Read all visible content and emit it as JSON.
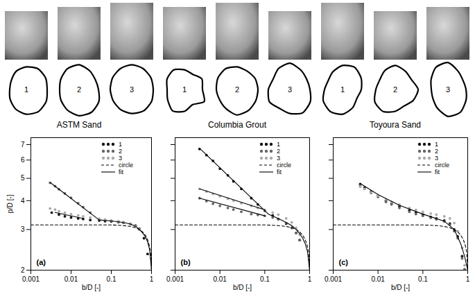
{
  "chart_data": [
    {
      "type": "line",
      "title": "ASTM Sand",
      "xlabel": "b/D [-]",
      "ylabel": "p/D [-]",
      "annotations": [
        "(a)"
      ],
      "log": true,
      "grid": false,
      "legend": "top-right",
      "xlim": [
        0.001,
        1
      ],
      "xticks": [
        0.001,
        0.01,
        0.1,
        1
      ],
      "ylim": [
        2,
        7.5
      ],
      "yticks": [
        2,
        3,
        4,
        5,
        6,
        7
      ],
      "series": [
        {
          "name": "1",
          "type": "scatter",
          "marker": "circle",
          "color": "#111111",
          "x": [
            0.0033,
            0.005,
            0.007,
            0.01,
            0.015,
            0.02,
            0.03,
            0.05,
            0.07,
            0.1,
            0.15,
            0.2,
            0.3,
            0.4,
            0.5,
            0.65,
            0.8
          ],
          "values": [
            3.55,
            3.48,
            3.42,
            3.38,
            3.35,
            3.33,
            3.3,
            3.28,
            3.26,
            3.25,
            3.23,
            3.21,
            3.17,
            3.12,
            3.02,
            2.75,
            2.35
          ]
        },
        {
          "name": "2",
          "type": "scatter",
          "marker": "circle",
          "color": "#666666",
          "x": [
            0.003,
            0.004,
            0.005,
            0.007,
            0.01,
            0.015,
            0.02,
            0.03,
            0.05,
            0.07,
            0.1,
            0.15,
            0.2,
            0.3,
            0.4,
            0.5
          ],
          "values": [
            4.78,
            4.62,
            4.48,
            4.3,
            4.12,
            3.9,
            3.75,
            3.55,
            3.32,
            3.3,
            3.27,
            3.24,
            3.22,
            3.17,
            3.1,
            3.0
          ]
        },
        {
          "name": "3",
          "type": "scatter",
          "marker": "circle",
          "color": "#aaaaaa",
          "x": [
            0.003,
            0.004,
            0.005,
            0.007,
            0.01,
            0.015,
            0.02,
            0.03,
            0.05,
            0.07,
            0.1,
            0.15,
            0.2,
            0.3,
            0.4,
            0.5
          ],
          "values": [
            3.7,
            3.66,
            3.6,
            3.55,
            3.5,
            3.45,
            3.42,
            3.38,
            3.34,
            3.31,
            3.29,
            3.26,
            3.23,
            3.18,
            3.1,
            3.0
          ]
        },
        {
          "name": "circle",
          "type": "line",
          "line_style": "dashed",
          "color": "#000000",
          "x": [
            0.001,
            0.01,
            0.1,
            0.2,
            0.3,
            0.4,
            0.5,
            0.6,
            0.7,
            0.8,
            0.9,
            0.95,
            1
          ],
          "values": [
            3.1416,
            3.1416,
            3.1416,
            3.12,
            3.093,
            3.054,
            3.0,
            2.929,
            2.836,
            2.71,
            2.525,
            2.381,
            2.0
          ]
        },
        {
          "name": "fit",
          "type": "line",
          "line_style": "solid",
          "color": "#000000",
          "x": [
            0.003,
            0.05,
            0.1,
            0.2,
            0.3,
            0.4,
            0.5,
            0.6,
            0.7,
            0.8,
            0.9,
            1,
            0.004,
            0.004,
            0.02
          ],
          "values": [
            4.8,
            3.3,
            3.27,
            3.22,
            3.17,
            3.1,
            3.0,
            2.9,
            2.8,
            2.65,
            2.45,
            2.0,
            null,
            3.56,
            3.35
          ]
        }
      ]
    },
    {
      "type": "line",
      "title": "Columbia Grout",
      "xlabel": "b/D [-]",
      "annotations": [
        "(b)"
      ],
      "log": true,
      "grid": false,
      "legend": "top-right",
      "tick_labels": "x",
      "xlim": [
        0.001,
        1
      ],
      "xticks": [
        0.001,
        0.01,
        0.1,
        1
      ],
      "ylim": [
        2,
        7.5
      ],
      "yticks": [
        2,
        3,
        4,
        5,
        6,
        7
      ],
      "series": [
        {
          "name": "1",
          "type": "scatter",
          "marker": "circle",
          "color": "#111111",
          "x": [
            0.0035,
            0.005,
            0.007,
            0.01,
            0.015,
            0.02,
            0.03,
            0.05,
            0.07,
            0.1,
            0.15,
            0.2,
            0.3,
            0.4,
            0.5,
            0.6
          ],
          "values": [
            6.7,
            6.3,
            5.95,
            5.5,
            5.15,
            4.85,
            4.5,
            4.1,
            3.85,
            3.62,
            3.45,
            3.33,
            3.18,
            3.05,
            2.9,
            2.7
          ]
        },
        {
          "name": "2",
          "type": "scatter",
          "marker": "circle",
          "color": "#666666",
          "x": [
            0.0035,
            0.005,
            0.007,
            0.01,
            0.015,
            0.02,
            0.03,
            0.05,
            0.07,
            0.1,
            0.15,
            0.2,
            0.3,
            0.4,
            0.5,
            0.6
          ],
          "values": [
            4.1,
            3.98,
            3.88,
            3.8,
            3.72,
            3.66,
            3.58,
            3.5,
            3.47,
            3.44,
            3.38,
            3.32,
            3.2,
            3.05,
            2.9,
            2.7
          ]
        },
        {
          "name": "3",
          "type": "scatter",
          "marker": "circle",
          "color": "#aaaaaa",
          "x": [
            0.0035,
            0.005,
            0.007,
            0.01,
            0.015,
            0.02,
            0.03,
            0.05,
            0.07,
            0.1,
            0.15,
            0.2,
            0.3,
            0.4,
            0.5,
            0.6
          ],
          "values": [
            4.5,
            4.38,
            4.28,
            4.18,
            4.08,
            4.0,
            3.9,
            3.8,
            3.72,
            3.65,
            3.55,
            3.48,
            3.35,
            3.22,
            3.05,
            2.85
          ]
        },
        {
          "name": "circle",
          "type": "line",
          "line_style": "dashed",
          "color": "#000000",
          "x": [
            0.001,
            0.01,
            0.1,
            0.2,
            0.3,
            0.4,
            0.5,
            0.6,
            0.7,
            0.8,
            0.9,
            0.95,
            1
          ],
          "values": [
            3.1416,
            3.1416,
            3.1416,
            3.12,
            3.093,
            3.054,
            3.0,
            2.929,
            2.836,
            2.71,
            2.525,
            2.381,
            2.0
          ]
        },
        {
          "name": "fit",
          "type": "line",
          "line_style": "solid",
          "color": "#000000",
          "x": [
            0.0035,
            0.12,
            0.2,
            0.3,
            0.4,
            0.5,
            0.6,
            0.7,
            0.8,
            0.9,
            1,
            0.0035,
            0.0035,
            0.1,
            0.0035,
            0.0035,
            0.1
          ],
          "values": [
            6.75,
            3.5,
            3.35,
            3.22,
            3.12,
            3.0,
            2.88,
            2.75,
            2.6,
            2.4,
            2.0,
            null,
            4.1,
            3.44,
            null,
            4.5,
            3.65
          ]
        }
      ]
    },
    {
      "type": "line",
      "title": "Toyoura Sand",
      "xlabel": "b/D [-]",
      "annotations": [
        "(c)"
      ],
      "log": true,
      "grid": false,
      "legend": "top-right",
      "tick_labels": "x",
      "xlim": [
        0.001,
        1
      ],
      "xticks": [
        0.001,
        0.01,
        0.1,
        1
      ],
      "ylim": [
        2,
        7.5
      ],
      "yticks": [
        2,
        3,
        4,
        5,
        6,
        7
      ],
      "series": [
        {
          "name": "1",
          "type": "scatter",
          "marker": "circle",
          "color": "#111111",
          "x": [
            0.004,
            0.005,
            0.007,
            0.01,
            0.015,
            0.02,
            0.03,
            0.05,
            0.07,
            0.1,
            0.15,
            0.2,
            0.3,
            0.4,
            0.5,
            0.6,
            0.75,
            0.85
          ],
          "values": [
            4.72,
            4.55,
            4.38,
            4.2,
            4.0,
            3.9,
            3.78,
            3.63,
            3.55,
            3.48,
            3.4,
            3.35,
            3.28,
            3.18,
            3.0,
            2.8,
            2.3,
            2.0
          ]
        },
        {
          "name": "2",
          "type": "scatter",
          "marker": "circle",
          "color": "#666666",
          "x": [
            0.004,
            0.005,
            0.007,
            0.01,
            0.015,
            0.02,
            0.03,
            0.05,
            0.07,
            0.1,
            0.15,
            0.2,
            0.3,
            0.4,
            0.5,
            0.6,
            0.75,
            0.85
          ],
          "values": [
            4.65,
            4.5,
            4.32,
            4.15,
            3.95,
            3.85,
            3.72,
            3.58,
            3.5,
            3.44,
            3.37,
            3.32,
            3.25,
            3.15,
            2.95,
            2.75,
            2.25,
            2.02
          ]
        },
        {
          "name": "3",
          "type": "scatter",
          "marker": "circle",
          "color": "#aaaaaa",
          "x": [
            0.004,
            0.005,
            0.007,
            0.01,
            0.015,
            0.02,
            0.03,
            0.05,
            0.07,
            0.1,
            0.15,
            0.2,
            0.3,
            0.4,
            0.5,
            0.6,
            0.75,
            0.85
          ],
          "values": [
            4.6,
            4.5,
            4.35,
            4.2,
            4.05,
            3.95,
            3.85,
            3.72,
            3.65,
            3.58,
            3.52,
            3.48,
            3.42,
            3.35,
            3.2,
            2.95,
            2.5,
            2.1
          ]
        },
        {
          "name": "circle",
          "type": "line",
          "line_style": "dashed",
          "color": "#000000",
          "x": [
            0.001,
            0.01,
            0.1,
            0.2,
            0.3,
            0.4,
            0.5,
            0.6,
            0.7,
            0.8,
            0.9,
            0.95,
            1
          ],
          "values": [
            3.1416,
            3.1416,
            3.1416,
            3.12,
            3.093,
            3.054,
            3.0,
            2.929,
            2.836,
            2.71,
            2.525,
            2.381,
            2.0
          ]
        },
        {
          "name": "fit",
          "type": "line",
          "line_style": "solid",
          "color": "#000000",
          "x": [
            0.004,
            0.01,
            0.03,
            0.1,
            0.3,
            0.5,
            0.7,
            0.85,
            1
          ],
          "values": [
            4.75,
            4.25,
            3.82,
            3.5,
            3.26,
            3.0,
            2.6,
            2.3,
            2.0
          ]
        }
      ]
    }
  ]
}
